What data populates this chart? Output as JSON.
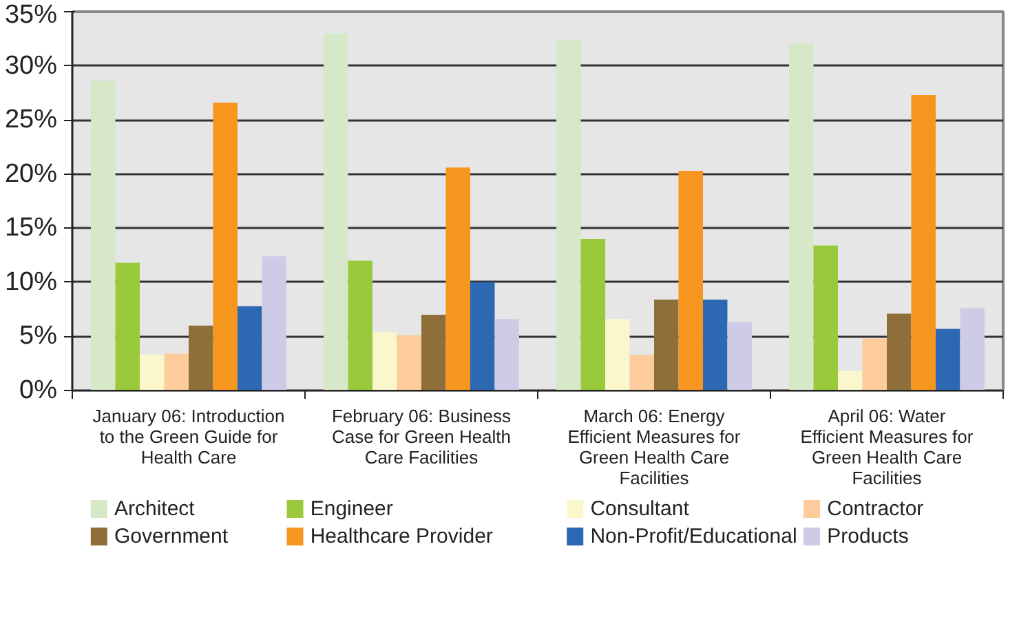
{
  "chart_data": {
    "type": "bar",
    "categories": [
      "January 06: Introduction to the Green Guide for Health Care",
      "February 06: Business Case for Green Health Care Facilities",
      "March 06: Energy Efficient Measures for Green Health Care Facilities",
      "April 06: Water Efficient Measures for Green Health Care Facilities"
    ],
    "series": [
      {
        "name": "Architect",
        "color": "#d6e8c8",
        "values": [
          28.6,
          33.0,
          32.4,
          32.1
        ]
      },
      {
        "name": "Engineer",
        "color": "#9aca3c",
        "values": [
          11.8,
          12.0,
          14.0,
          13.4
        ]
      },
      {
        "name": "Consultant",
        "color": "#fbf7cc",
        "values": [
          3.3,
          5.4,
          6.6,
          1.8
        ]
      },
      {
        "name": "Contractor",
        "color": "#fdcb9c",
        "values": [
          3.4,
          5.1,
          3.3,
          4.8
        ]
      },
      {
        "name": "Government",
        "color": "#8e6f3a",
        "values": [
          6.0,
          7.0,
          8.4,
          7.1
        ]
      },
      {
        "name": "Healthcare Provider",
        "color": "#f7961f",
        "values": [
          26.6,
          20.6,
          20.3,
          27.3
        ]
      },
      {
        "name": "Non-Profit/Educational",
        "color": "#2d68b2",
        "values": [
          7.8,
          10.0,
          8.4,
          5.7
        ]
      },
      {
        "name": "Products",
        "color": "#cdcbe6",
        "values": [
          12.4,
          6.6,
          6.3,
          7.6
        ]
      }
    ],
    "ylim": [
      0,
      35
    ],
    "yticks": [
      {
        "value": 0,
        "label": "0%"
      },
      {
        "value": 5,
        "label": "5%"
      },
      {
        "value": 10,
        "label": "10%"
      },
      {
        "value": 15,
        "label": "15%"
      },
      {
        "value": 20,
        "label": "20%"
      },
      {
        "value": 25,
        "label": "25%"
      },
      {
        "value": 30,
        "label": "30%"
      },
      {
        "value": 35,
        "label": "35%"
      }
    ],
    "grid": "y",
    "legend": "bottom"
  }
}
